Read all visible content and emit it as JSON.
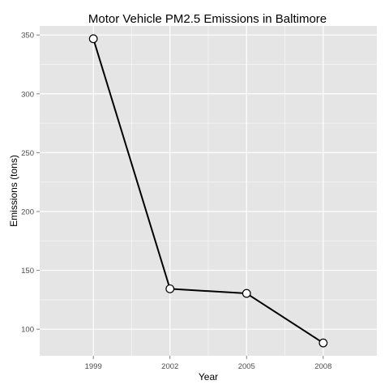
{
  "chart_data": {
    "type": "line",
    "title": "Motor Vehicle PM2.5 Emissions in Baltimore",
    "xlabel": "Year",
    "ylabel": "Emissions (tons)",
    "categories": [
      "1999",
      "2002",
      "2005",
      "2008"
    ],
    "values": [
      346.8,
      134.3,
      130.4,
      88.3
    ],
    "yticks": [
      100,
      150,
      200,
      250,
      300,
      350
    ],
    "ylim": [
      77.4,
      357.7
    ],
    "grid": true,
    "colors": {
      "panel": "#e5e5e5",
      "grid_major": "#ffffff",
      "grid_minor": "#f2f2f2",
      "line": "#000000",
      "marker_fill": "#ffffff",
      "marker_stroke": "#000000",
      "tick_text": "#4d4d4d"
    }
  }
}
